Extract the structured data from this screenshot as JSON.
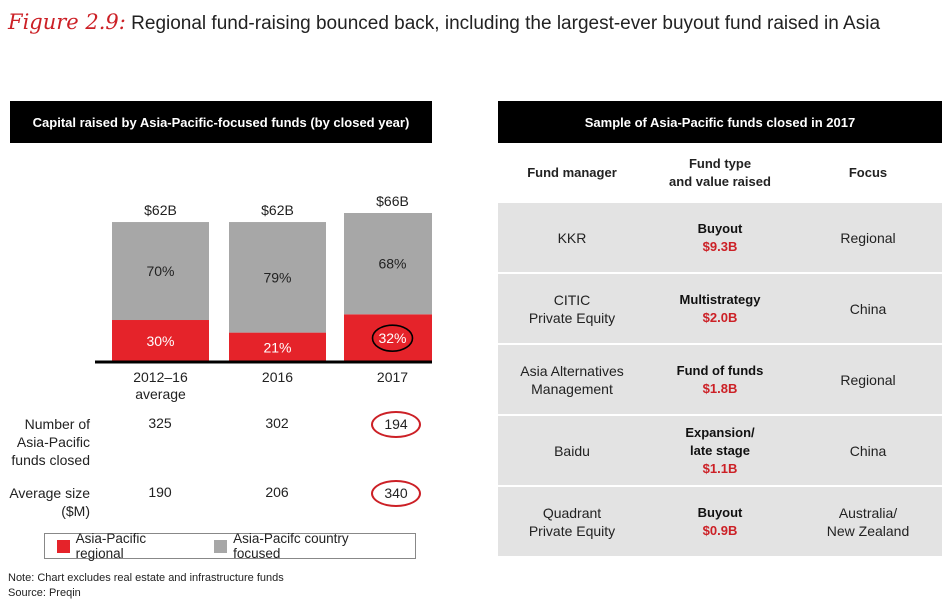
{
  "figure": {
    "number": "Figure 2.9:",
    "title": "Regional fund-raising bounced back, including the largest-ever buyout fund raised in Asia"
  },
  "left_panel": {
    "header": "Capital raised by Asia-Pacific-focused funds (by closed year)",
    "stats": [
      {
        "label": [
          "Number of",
          "Asia-Pacific",
          "funds closed"
        ],
        "values": [
          "325",
          "302",
          "194"
        ],
        "circled_index": 2
      },
      {
        "label": [
          "Average size",
          "($M)"
        ],
        "values": [
          "190",
          "206",
          "340"
        ],
        "circled_index": 2
      }
    ],
    "legend": [
      "Asia-Pacific regional",
      "Asia-Pacifc country focused"
    ]
  },
  "chart_data": {
    "type": "bar",
    "stacked": true,
    "normalized": true,
    "categories": [
      [
        "2012–16",
        "average"
      ],
      [
        "2016"
      ],
      [
        "2017"
      ]
    ],
    "totals": [
      "$62B",
      "$62B",
      "$66B"
    ],
    "total_values": [
      62,
      62,
      66
    ],
    "series": [
      {
        "name": "Asia-Pacific regional",
        "values": [
          30,
          21,
          32
        ],
        "labels": [
          "30%",
          "21%",
          "32%"
        ],
        "color": "#e5232a"
      },
      {
        "name": "Asia-Pacifc country focused",
        "values": [
          70,
          79,
          68
        ],
        "labels": [
          "70%",
          "79%",
          "68%"
        ],
        "color": "#a7a7a7"
      }
    ],
    "highlight": {
      "series": 0,
      "category": 2
    },
    "ylim": [
      0,
      100
    ]
  },
  "right_panel": {
    "header": "Sample of Asia-Pacific funds closed in 2017",
    "columns": [
      [
        "Fund manager"
      ],
      [
        "Fund type",
        "and value raised"
      ],
      [
        "Focus"
      ]
    ],
    "rows": [
      {
        "manager": [
          "KKR"
        ],
        "type": [
          "Buyout"
        ],
        "value": "$9.3B",
        "focus": [
          "Regional"
        ]
      },
      {
        "manager": [
          "CITIC",
          "Private Equity"
        ],
        "type": [
          "Multistrategy"
        ],
        "value": "$2.0B",
        "focus": [
          "China"
        ]
      },
      {
        "manager": [
          "Asia Alternatives",
          "Management"
        ],
        "type": [
          "Fund of funds"
        ],
        "value": "$1.8B",
        "focus": [
          "Regional"
        ]
      },
      {
        "manager": [
          "Baidu"
        ],
        "type": [
          "Expansion/",
          "late stage"
        ],
        "value": "$1.1B",
        "focus": [
          "China"
        ]
      },
      {
        "manager": [
          "Quadrant",
          "Private Equity"
        ],
        "type": [
          "Buyout"
        ],
        "value": "$0.9B",
        "focus": [
          "Australia/",
          "New Zealand"
        ]
      }
    ]
  },
  "notes": [
    "Note: Chart excludes real estate and infrastructure funds",
    "Source: Preqin"
  ],
  "colors": {
    "accent": "#cc2026",
    "regional": "#e5232a",
    "country": "#a7a7a7",
    "header_bg": "#000000",
    "row_bg": "#e3e3e3"
  }
}
